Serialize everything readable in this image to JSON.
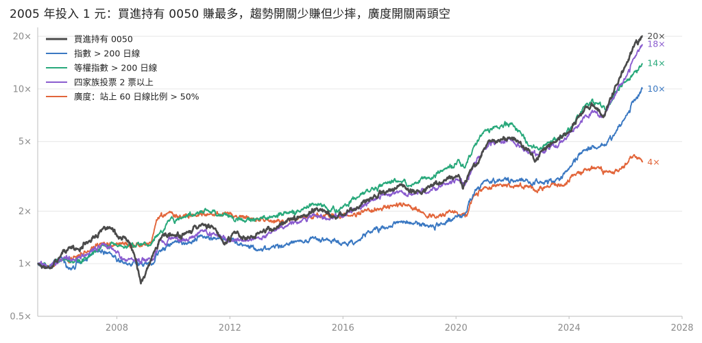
{
  "chart_data": {
    "type": "line",
    "title": "2005 年投入 1 元：買進持有 0050 賺最多，趨勢開關少賺但少摔，廣度開關兩頭空",
    "xlabel": "",
    "ylabel": "",
    "y_scale": "log",
    "xlim": [
      2005.2,
      2028.0
    ],
    "ylim": [
      0.5,
      22.5
    ],
    "x_ticks": [
      2008,
      2012,
      2016,
      2020,
      2024,
      2028
    ],
    "x_tick_labels": [
      "2008",
      "2012",
      "2016",
      "2020",
      "2024",
      "2028"
    ],
    "y_ticks": [
      0.5,
      1,
      2,
      5,
      10,
      20
    ],
    "y_tick_labels": [
      "0.5×",
      "1×",
      "2×",
      "5×",
      "10×",
      "20×"
    ],
    "grid": "horizontal",
    "legend_position": "top-left",
    "series": [
      {
        "name": "買進持有 0050",
        "color": "#4a4a4a",
        "end_label": "20×",
        "points": [
          [
            2005.2,
            1.0
          ],
          [
            2005.6,
            0.95
          ],
          [
            2006.0,
            1.1
          ],
          [
            2006.3,
            1.25
          ],
          [
            2006.6,
            1.2
          ],
          [
            2007.0,
            1.35
          ],
          [
            2007.5,
            1.55
          ],
          [
            2007.8,
            1.6
          ],
          [
            2008.0,
            1.45
          ],
          [
            2008.4,
            1.35
          ],
          [
            2008.6,
            1.15
          ],
          [
            2008.85,
            0.78
          ],
          [
            2009.0,
            0.85
          ],
          [
            2009.3,
            1.15
          ],
          [
            2009.6,
            1.45
          ],
          [
            2010.0,
            1.45
          ],
          [
            2010.5,
            1.5
          ],
          [
            2011.0,
            1.7
          ],
          [
            2011.4,
            1.6
          ],
          [
            2011.8,
            1.3
          ],
          [
            2012.2,
            1.5
          ],
          [
            2012.7,
            1.4
          ],
          [
            2013.0,
            1.5
          ],
          [
            2013.6,
            1.6
          ],
          [
            2014.0,
            1.75
          ],
          [
            2014.6,
            1.9
          ],
          [
            2015.2,
            2.05
          ],
          [
            2015.8,
            1.8
          ],
          [
            2016.0,
            1.9
          ],
          [
            2016.5,
            2.1
          ],
          [
            2017.0,
            2.35
          ],
          [
            2017.6,
            2.6
          ],
          [
            2018.0,
            2.85
          ],
          [
            2018.8,
            2.5
          ],
          [
            2019.0,
            2.75
          ],
          [
            2019.6,
            3.0
          ],
          [
            2020.1,
            3.2
          ],
          [
            2020.25,
            2.7
          ],
          [
            2020.5,
            3.4
          ],
          [
            2020.8,
            3.8
          ],
          [
            2021.0,
            4.6
          ],
          [
            2021.3,
            5.2
          ],
          [
            2021.6,
            5.1
          ],
          [
            2021.9,
            5.3
          ],
          [
            2022.2,
            5.0
          ],
          [
            2022.6,
            4.4
          ],
          [
            2022.8,
            3.9
          ],
          [
            2023.0,
            4.4
          ],
          [
            2023.5,
            5.0
          ],
          [
            2024.0,
            5.6
          ],
          [
            2024.3,
            6.8
          ],
          [
            2024.6,
            7.8
          ],
          [
            2024.9,
            8.0
          ],
          [
            2025.2,
            6.9
          ],
          [
            2025.4,
            8.2
          ],
          [
            2025.7,
            10.5
          ],
          [
            2026.0,
            13.5
          ],
          [
            2026.3,
            17.5
          ],
          [
            2026.6,
            20.0
          ]
        ]
      },
      {
        "name": "指數 > 200 日線",
        "color": "#3a78c2",
        "end_label": "10×",
        "points": [
          [
            2005.2,
            1.0
          ],
          [
            2005.6,
            0.95
          ],
          [
            2006.0,
            1.08
          ],
          [
            2006.3,
            0.93
          ],
          [
            2006.8,
            1.05
          ],
          [
            2007.3,
            1.2
          ],
          [
            2007.8,
            1.12
          ],
          [
            2008.3,
            1.0
          ],
          [
            2009.3,
            1.0
          ],
          [
            2009.5,
            1.2
          ],
          [
            2010.0,
            1.35
          ],
          [
            2010.5,
            1.3
          ],
          [
            2011.0,
            1.45
          ],
          [
            2011.5,
            1.38
          ],
          [
            2012.0,
            1.4
          ],
          [
            2012.5,
            1.25
          ],
          [
            2013.0,
            1.2
          ],
          [
            2013.5,
            1.25
          ],
          [
            2014.0,
            1.3
          ],
          [
            2014.5,
            1.35
          ],
          [
            2015.0,
            1.42
          ],
          [
            2015.5,
            1.35
          ],
          [
            2016.0,
            1.32
          ],
          [
            2016.5,
            1.35
          ],
          [
            2017.0,
            1.55
          ],
          [
            2017.6,
            1.6
          ],
          [
            2018.0,
            1.75
          ],
          [
            2018.5,
            1.7
          ],
          [
            2019.0,
            1.65
          ],
          [
            2019.5,
            1.7
          ],
          [
            2020.0,
            1.85
          ],
          [
            2020.3,
            1.9
          ],
          [
            2020.6,
            2.5
          ],
          [
            2021.0,
            2.95
          ],
          [
            2021.6,
            3.0
          ],
          [
            2022.1,
            3.0
          ],
          [
            2022.6,
            2.9
          ],
          [
            2023.0,
            2.9
          ],
          [
            2023.5,
            2.95
          ],
          [
            2024.0,
            3.5
          ],
          [
            2024.5,
            4.5
          ],
          [
            2025.0,
            4.6
          ],
          [
            2025.3,
            4.8
          ],
          [
            2025.6,
            5.5
          ],
          [
            2026.0,
            7.0
          ],
          [
            2026.3,
            8.5
          ],
          [
            2026.6,
            10.0
          ]
        ]
      },
      {
        "name": "等權指數 > 200 日線",
        "color": "#27a87a",
        "end_label": "14×",
        "points": [
          [
            2005.2,
            1.0
          ],
          [
            2005.6,
            0.96
          ],
          [
            2006.0,
            1.05
          ],
          [
            2006.5,
            1.02
          ],
          [
            2007.0,
            1.1
          ],
          [
            2007.5,
            1.25
          ],
          [
            2008.0,
            1.28
          ],
          [
            2009.2,
            1.28
          ],
          [
            2009.5,
            1.5
          ],
          [
            2009.8,
            1.75
          ],
          [
            2010.3,
            1.85
          ],
          [
            2010.8,
            1.95
          ],
          [
            2011.2,
            2.05
          ],
          [
            2011.7,
            1.9
          ],
          [
            2012.0,
            1.85
          ],
          [
            2012.5,
            1.75
          ],
          [
            2013.0,
            1.8
          ],
          [
            2013.5,
            1.85
          ],
          [
            2014.0,
            1.95
          ],
          [
            2014.5,
            2.0
          ],
          [
            2015.0,
            2.2
          ],
          [
            2015.5,
            2.05
          ],
          [
            2016.0,
            2.1
          ],
          [
            2016.5,
            2.4
          ],
          [
            2017.0,
            2.7
          ],
          [
            2017.5,
            2.85
          ],
          [
            2018.0,
            3.0
          ],
          [
            2018.5,
            2.9
          ],
          [
            2019.0,
            3.1
          ],
          [
            2019.6,
            3.5
          ],
          [
            2020.1,
            3.9
          ],
          [
            2020.3,
            3.5
          ],
          [
            2020.6,
            4.5
          ],
          [
            2021.0,
            5.8
          ],
          [
            2021.5,
            6.0
          ],
          [
            2022.0,
            6.3
          ],
          [
            2022.3,
            5.6
          ],
          [
            2022.6,
            4.7
          ],
          [
            2022.9,
            4.5
          ],
          [
            2023.3,
            5.0
          ],
          [
            2023.8,
            5.3
          ],
          [
            2024.2,
            6.5
          ],
          [
            2024.6,
            8.2
          ],
          [
            2025.0,
            8.2
          ],
          [
            2025.3,
            7.5
          ],
          [
            2025.6,
            9.5
          ],
          [
            2026.0,
            11.0
          ],
          [
            2026.3,
            12.5
          ],
          [
            2026.6,
            14.0
          ]
        ]
      },
      {
        "name": "四家族投票 2 票以上",
        "color": "#8a5ccf",
        "end_label": "18×",
        "points": [
          [
            2005.2,
            1.0
          ],
          [
            2005.6,
            0.95
          ],
          [
            2006.0,
            1.05
          ],
          [
            2006.5,
            1.05
          ],
          [
            2007.0,
            1.15
          ],
          [
            2007.5,
            1.3
          ],
          [
            2007.9,
            1.2
          ],
          [
            2008.3,
            1.05
          ],
          [
            2009.3,
            1.05
          ],
          [
            2009.5,
            1.35
          ],
          [
            2010.0,
            1.4
          ],
          [
            2010.5,
            1.35
          ],
          [
            2011.0,
            1.55
          ],
          [
            2011.5,
            1.45
          ],
          [
            2012.0,
            1.35
          ],
          [
            2012.5,
            1.35
          ],
          [
            2013.0,
            1.4
          ],
          [
            2013.5,
            1.55
          ],
          [
            2014.0,
            1.65
          ],
          [
            2014.5,
            1.75
          ],
          [
            2015.0,
            1.9
          ],
          [
            2015.5,
            1.8
          ],
          [
            2016.0,
            1.85
          ],
          [
            2016.5,
            2.05
          ],
          [
            2017.0,
            2.3
          ],
          [
            2017.5,
            2.45
          ],
          [
            2018.0,
            2.6
          ],
          [
            2018.5,
            2.5
          ],
          [
            2019.0,
            2.6
          ],
          [
            2019.6,
            2.85
          ],
          [
            2020.1,
            3.0
          ],
          [
            2020.3,
            2.8
          ],
          [
            2020.6,
            3.6
          ],
          [
            2021.0,
            4.6
          ],
          [
            2021.5,
            5.0
          ],
          [
            2022.0,
            5.1
          ],
          [
            2022.3,
            4.7
          ],
          [
            2022.6,
            4.3
          ],
          [
            2022.9,
            4.2
          ],
          [
            2023.3,
            4.6
          ],
          [
            2023.8,
            5.0
          ],
          [
            2024.2,
            6.0
          ],
          [
            2024.6,
            7.0
          ],
          [
            2024.9,
            7.4
          ],
          [
            2025.2,
            7.0
          ],
          [
            2025.5,
            8.5
          ],
          [
            2026.0,
            11.5
          ],
          [
            2026.3,
            15.0
          ],
          [
            2026.6,
            18.0
          ]
        ]
      },
      {
        "name": "廣度：站上 60 日線比例 > 50%",
        "color": "#e2653a",
        "end_label": "4×",
        "points": [
          [
            2005.2,
            1.0
          ],
          [
            2005.6,
            0.97
          ],
          [
            2006.0,
            1.05
          ],
          [
            2006.5,
            1.1
          ],
          [
            2007.0,
            1.2
          ],
          [
            2007.5,
            1.3
          ],
          [
            2008.0,
            1.3
          ],
          [
            2009.2,
            1.3
          ],
          [
            2009.4,
            1.8
          ],
          [
            2009.8,
            1.95
          ],
          [
            2010.3,
            1.85
          ],
          [
            2010.8,
            1.9
          ],
          [
            2011.3,
            1.95
          ],
          [
            2011.8,
            1.9
          ],
          [
            2012.3,
            1.85
          ],
          [
            2012.8,
            1.8
          ],
          [
            2013.3,
            1.8
          ],
          [
            2013.8,
            1.75
          ],
          [
            2014.3,
            1.8
          ],
          [
            2014.8,
            1.85
          ],
          [
            2015.3,
            1.9
          ],
          [
            2015.8,
            1.85
          ],
          [
            2016.3,
            1.9
          ],
          [
            2016.8,
            2.0
          ],
          [
            2017.3,
            2.05
          ],
          [
            2017.8,
            2.2
          ],
          [
            2018.3,
            2.15
          ],
          [
            2018.8,
            1.95
          ],
          [
            2019.3,
            1.85
          ],
          [
            2019.8,
            2.0
          ],
          [
            2020.2,
            1.9
          ],
          [
            2020.4,
            1.9
          ],
          [
            2020.6,
            2.4
          ],
          [
            2021.0,
            2.7
          ],
          [
            2021.5,
            2.8
          ],
          [
            2022.0,
            2.75
          ],
          [
            2022.5,
            2.8
          ],
          [
            2022.8,
            2.6
          ],
          [
            2023.2,
            2.8
          ],
          [
            2023.8,
            2.85
          ],
          [
            2024.2,
            3.3
          ],
          [
            2024.6,
            3.5
          ],
          [
            2025.0,
            3.5
          ],
          [
            2025.4,
            3.3
          ],
          [
            2025.8,
            3.5
          ],
          [
            2026.1,
            3.8
          ],
          [
            2026.3,
            4.2
          ],
          [
            2026.6,
            3.8
          ]
        ]
      }
    ]
  }
}
